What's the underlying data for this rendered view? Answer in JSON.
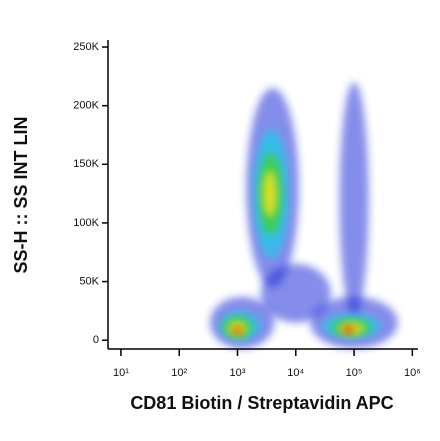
{
  "chart_data": {
    "type": "density",
    "xlabel": "CD81 Biotin / Streptavidin APC",
    "ylabel": "SS-H :: SS INT LIN",
    "xscale": "log",
    "xlim": [
      6,
      1250000
    ],
    "xticks": [
      {
        "value": 10,
        "label": "10¹"
      },
      {
        "value": 100,
        "label": "10²"
      },
      {
        "value": 1000,
        "label": "10³"
      },
      {
        "value": 10000,
        "label": "10⁴"
      },
      {
        "value": 100000,
        "label": "10⁵"
      },
      {
        "value": 1000000,
        "label": "10⁶"
      }
    ],
    "ylim": [
      -7500,
      256000
    ],
    "yticks": [
      0,
      {
        "value": 50000,
        "label": "50K"
      },
      {
        "value": 100000,
        "label": "100K"
      },
      {
        "value": 150000,
        "label": "150K"
      },
      {
        "value": 200000,
        "label": "200K"
      },
      {
        "value": 250000,
        "label": "250K"
      }
    ],
    "series": [
      {
        "color": "#1f2fd8",
        "opacity": 0.55,
        "x": [
          4000,
          100000,
          10000,
          1200,
          100000
        ],
        "values": [
          130000,
          120000,
          40000,
          15000,
          15000
        ],
        "xspread": [
          0.45,
          0.25,
          0.6,
          0.55,
          0.75
        ],
        "yspread": [
          85000,
          100000,
          25000,
          22000,
          22000
        ]
      },
      {
        "color": "#22c8e8",
        "opacity": 0.8,
        "x": [
          3800,
          1100,
          90000
        ],
        "values": [
          125000,
          12000,
          12000
        ],
        "xspread": [
          0.3,
          0.35,
          0.5
        ],
        "yspread": [
          55000,
          12000,
          10000
        ]
      },
      {
        "color": "#3cd23c",
        "opacity": 0.85,
        "x": [
          3700,
          1000,
          90000
        ],
        "values": [
          125000,
          11000,
          11000
        ],
        "xspread": [
          0.2,
          0.25,
          0.35
        ],
        "yspread": [
          35000,
          9000,
          7000
        ]
      },
      {
        "color": "#f0e020",
        "opacity": 0.9,
        "x": [
          3600,
          1000,
          90000
        ],
        "values": [
          125000,
          10000,
          10000
        ],
        "xspread": [
          0.12,
          0.16,
          0.22
        ],
        "yspread": [
          20000,
          6000,
          5000
        ]
      },
      {
        "color": "#e83010",
        "opacity": 0.9,
        "x": [
          1000,
          80000
        ],
        "values": [
          8000,
          9000
        ],
        "xspread": [
          0.08,
          0.1
        ],
        "yspread": [
          3000,
          3000
        ]
      }
    ]
  }
}
